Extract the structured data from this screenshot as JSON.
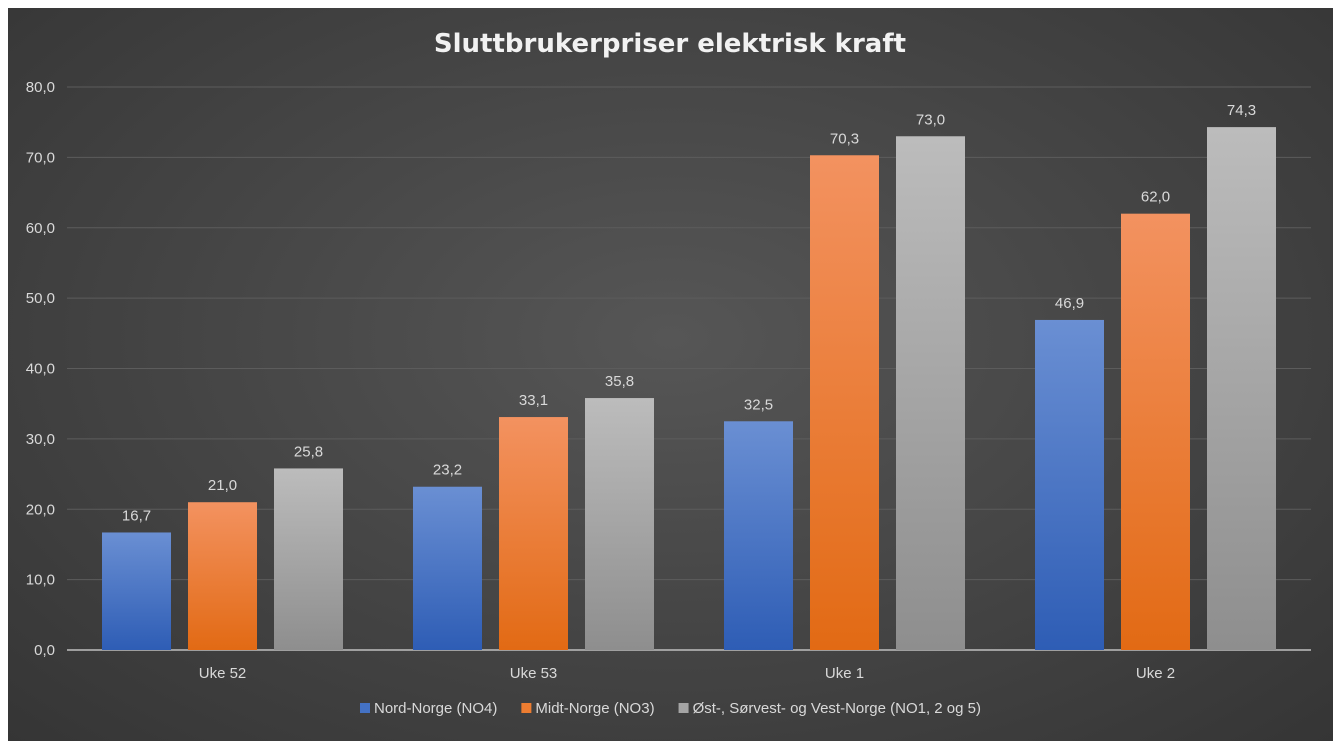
{
  "chart_data": {
    "type": "bar",
    "title": "Sluttbrukerpriser elektrisk kraft",
    "categories": [
      "Uke 52",
      "Uke 53",
      "Uke 1",
      "Uke 2"
    ],
    "series": [
      {
        "name": "Nord-Norge (NO4)",
        "color": "#4472c4",
        "values": [
          16.7,
          23.2,
          32.5,
          46.9
        ],
        "labels": [
          "16,7",
          "23,2",
          "32,5",
          "46,9"
        ]
      },
      {
        "name": "Midt-Norge (NO3)",
        "color": "#ed7d31",
        "values": [
          21.0,
          33.1,
          70.3,
          62.0
        ],
        "labels": [
          "21,0",
          "33,1",
          "70,3",
          "62,0"
        ]
      },
      {
        "name": "Øst-, Sørvest- og Vest-Norge (NO1, 2 og 5)",
        "color": "#a5a5a5",
        "values": [
          25.8,
          35.8,
          73.0,
          74.3
        ],
        "labels": [
          "25,8",
          "35,8",
          "73,0",
          "74,3"
        ]
      }
    ],
    "yticks": [
      "0,0",
      "10,0",
      "20,0",
      "30,0",
      "40,0",
      "50,0",
      "60,0",
      "70,0",
      "80,0"
    ],
    "ylim": [
      0,
      80
    ],
    "grid": true,
    "legend": "bottom"
  }
}
